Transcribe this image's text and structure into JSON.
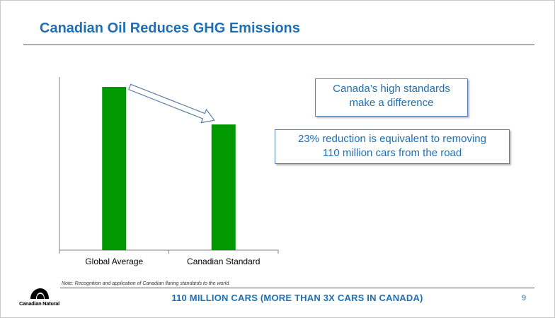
{
  "slide": {
    "title": "Canadian Oil Reduces GHG Emissions",
    "callouts": [
      {
        "line1": "Canada’s high standards",
        "line2": "make a difference"
      },
      {
        "line1": "23% reduction is equivalent to removing",
        "line2": "110 million cars from the road"
      }
    ],
    "note": "Note: Recognition and application of Canadian flaring standards to the world.",
    "footer": "110 MILLION CARS (MORE THAN 3X CARS IN CANADA)",
    "page_number": "9",
    "logo_text": "Canadian Natural"
  },
  "colors": {
    "accent": "#1f6fb2",
    "bar": "#009900",
    "callout_border": "#4f81bd"
  },
  "chart_data": {
    "type": "bar",
    "categories": [
      "Global Average",
      "Canadian Standard"
    ],
    "values": [
      100,
      77
    ],
    "title": "",
    "xlabel": "",
    "ylabel": "",
    "ylim": [
      0,
      113
    ],
    "annotation": "arrow from Global Average to Canadian Standard"
  }
}
